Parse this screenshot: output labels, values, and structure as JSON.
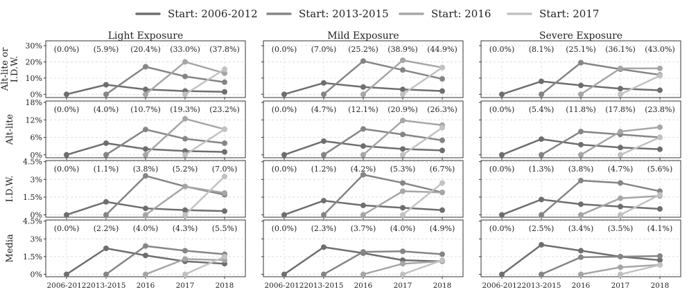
{
  "chart_data": {
    "type": "line",
    "legend": {
      "placement": "top-center",
      "entries": [
        {
          "label": "Start: 2006-2012",
          "color": "#6e6e6e"
        },
        {
          "label": "Start: 2013-2015",
          "color": "#858585"
        },
        {
          "label": "Start: 2016",
          "color": "#a6a6a6"
        },
        {
          "label": "Start: 2017",
          "color": "#c2c2c2"
        }
      ]
    },
    "columns": [
      "Light Exposure",
      "Mild Exposure",
      "Severe Exposure"
    ],
    "x_categories": [
      "2006-2012",
      "2013-2015",
      "2016",
      "2017",
      "2018"
    ],
    "grid": true,
    "rows": [
      {
        "ylabel": [
          "Alt-lite or",
          "I.D.W."
        ],
        "ylim": [
          -0.02,
          0.33
        ],
        "yticks": [
          {
            "v": 0,
            "label": "0%"
          },
          {
            "v": 0.1,
            "label": "10%"
          },
          {
            "v": 0.2,
            "label": "20%"
          },
          {
            "v": 0.3,
            "label": "30%"
          }
        ],
        "panels": [
          {
            "annotations": [
              "(0.0%)",
              "(5.9%)",
              "(20.4%)",
              "(33.0%)",
              "(37.8%)"
            ],
            "series": [
              {
                "start": 0,
                "values": [
                  0,
                  0.059,
                  0.03,
                  0.02,
                  0.015
                ]
              },
              {
                "start": 1,
                "values": [
                  0,
                  0.17,
                  0.11,
                  0.075
                ]
              },
              {
                "start": 2,
                "values": [
                  0,
                  0.2,
                  0.13
                ]
              },
              {
                "start": 3,
                "values": [
                  0,
                  0.155
                ]
              }
            ]
          },
          {
            "annotations": [
              "(0.0%)",
              "(7.0%)",
              "(25.2%)",
              "(38.9%)",
              "(44.9%)"
            ],
            "series": [
              {
                "start": 0,
                "values": [
                  0,
                  0.07,
                  0.045,
                  0.03,
                  0.02
                ]
              },
              {
                "start": 1,
                "values": [
                  0,
                  0.205,
                  0.15,
                  0.095
                ]
              },
              {
                "start": 2,
                "values": [
                  0,
                  0.21,
                  0.165
                ]
              },
              {
                "start": 3,
                "values": [
                  0,
                  0.165
                ]
              }
            ]
          },
          {
            "annotations": [
              "(0.0%)",
              "(8.1%)",
              "(25.1%)",
              "(36.1%)",
              "(43.0%)"
            ],
            "series": [
              {
                "start": 0,
                "values": [
                  0,
                  0.08,
                  0.055,
                  0.035,
                  0.025
                ]
              },
              {
                "start": 1,
                "values": [
                  0,
                  0.195,
                  0.155,
                  0.12
                ]
              },
              {
                "start": 2,
                "values": [
                  0,
                  0.16,
                  0.16
                ]
              },
              {
                "start": 3,
                "values": [
                  0,
                  0.115
                ]
              }
            ]
          }
        ]
      },
      {
        "ylabel": [
          "Alt-lite"
        ],
        "ylim": [
          -0.01,
          0.185
        ],
        "yticks": [
          {
            "v": 0,
            "label": "0%"
          },
          {
            "v": 0.06,
            "label": "6%"
          },
          {
            "v": 0.12,
            "label": "12%"
          },
          {
            "v": 0.18,
            "label": "18%"
          }
        ],
        "panels": [
          {
            "annotations": [
              "(0.0%)",
              "(4.0%)",
              "(10.7%)",
              "(19.3%)",
              "(23.2%)"
            ],
            "series": [
              {
                "start": 0,
                "values": [
                  0,
                  0.04,
                  0.02,
                  0.013,
                  0.01
                ]
              },
              {
                "start": 1,
                "values": [
                  0,
                  0.087,
                  0.055,
                  0.04
                ]
              },
              {
                "start": 2,
                "values": [
                  0,
                  0.124,
                  0.088
                ]
              },
              {
                "start": 3,
                "values": [
                  0,
                  0.088
                ]
              }
            ]
          },
          {
            "annotations": [
              "(0.0%)",
              "(4.7%)",
              "(12.1%)",
              "(20.9%)",
              "(26.3%)"
            ],
            "series": [
              {
                "start": 0,
                "values": [
                  0,
                  0.047,
                  0.03,
                  0.02,
                  0.015
                ]
              },
              {
                "start": 1,
                "values": [
                  0,
                  0.089,
                  0.07,
                  0.05
                ]
              },
              {
                "start": 2,
                "values": [
                  0,
                  0.118,
                  0.102
                ]
              },
              {
                "start": 3,
                "values": [
                  0,
                  0.093
                ]
              }
            ]
          },
          {
            "annotations": [
              "(0.0%)",
              "(5.4%)",
              "(11.8%)",
              "(17.8%)",
              "(23.8%)"
            ],
            "series": [
              {
                "start": 0,
                "values": [
                  0,
                  0.054,
                  0.035,
                  0.025,
                  0.019
                ]
              },
              {
                "start": 1,
                "values": [
                  0,
                  0.08,
                  0.07,
                  0.06
                ]
              },
              {
                "start": 2,
                "values": [
                  0,
                  0.08,
                  0.095
                ]
              },
              {
                "start": 3,
                "values": [
                  0,
                  0.06
                ]
              }
            ]
          }
        ]
      },
      {
        "ylabel": [
          "I.D.W."
        ],
        "ylim": [
          -0.002,
          0.046
        ],
        "yticks": [
          {
            "v": 0,
            "label": "0%"
          },
          {
            "v": 0.015,
            "label": "1.5%"
          },
          {
            "v": 0.03,
            "label": "3%"
          },
          {
            "v": 0.045,
            "label": "4.5%"
          }
        ],
        "panels": [
          {
            "annotations": [
              "(0.0%)",
              "(1.1%)",
              "(3.8%)",
              "(5.2%)",
              "(7.0%)"
            ],
            "series": [
              {
                "start": 0,
                "values": [
                  0,
                  0.011,
                  0.0055,
                  0.004,
                  0.0032
                ]
              },
              {
                "start": 1,
                "values": [
                  0,
                  0.033,
                  0.024,
                  0.017
                ]
              },
              {
                "start": 2,
                "values": [
                  0,
                  0.024,
                  0.0185
                ]
              },
              {
                "start": 3,
                "values": [
                  0,
                  0.0325
                ]
              }
            ]
          },
          {
            "annotations": [
              "(0.0%)",
              "(1.2%)",
              "(4.2%)",
              "(5.3%)",
              "(6.7%)"
            ],
            "series": [
              {
                "start": 0,
                "values": [
                  0,
                  0.012,
                  0.008,
                  0.006,
                  0.004
                ]
              },
              {
                "start": 1,
                "values": [
                  0,
                  0.034,
                  0.027,
                  0.019
                ]
              },
              {
                "start": 2,
                "values": [
                  0,
                  0.02,
                  0.019
                ]
              },
              {
                "start": 3,
                "values": [
                  0,
                  0.027
                ]
              }
            ]
          },
          {
            "annotations": [
              "(0.0%)",
              "(1.3%)",
              "(3.8%)",
              "(4.7%)",
              "(5.6%)"
            ],
            "series": [
              {
                "start": 0,
                "values": [
                  0,
                  0.013,
                  0.009,
                  0.007,
                  0.005
                ]
              },
              {
                "start": 1,
                "values": [
                  0,
                  0.029,
                  0.027,
                  0.02
                ]
              },
              {
                "start": 2,
                "values": [
                  0,
                  0.014,
                  0.016
                ]
              },
              {
                "start": 3,
                "values": [
                  0,
                  0.017
                ]
              }
            ]
          }
        ]
      },
      {
        "ylabel": [
          "Media"
        ],
        "ylim": [
          -0.002,
          0.046
        ],
        "yticks": [
          {
            "v": 0,
            "label": "0%"
          },
          {
            "v": 0.015,
            "label": "1.5%"
          },
          {
            "v": 0.03,
            "label": "3%"
          },
          {
            "v": 0.045,
            "label": "4.5%"
          }
        ],
        "panels": [
          {
            "annotations": [
              "(0.0%)",
              "(2.2%)",
              "(4.0%)",
              "(4.3%)",
              "(5.5%)"
            ],
            "series": [
              {
                "start": 0,
                "values": [
                  0,
                  0.022,
                  0.016,
                  0.011,
                  0.009
                ]
              },
              {
                "start": 1,
                "values": [
                  0,
                  0.024,
                  0.02,
                  0.017
                ]
              },
              {
                "start": 2,
                "values": [
                  0,
                  0.013,
                  0.012
                ]
              },
              {
                "start": 3,
                "values": [
                  0,
                  0.015
                ]
              }
            ]
          },
          {
            "annotations": [
              "(0.0%)",
              "(2.3%)",
              "(3.7%)",
              "(4.0%)",
              "(4.9%)"
            ],
            "series": [
              {
                "start": 0,
                "values": [
                  0,
                  0.023,
                  0.018,
                  0.012,
                  0.011
                ]
              },
              {
                "start": 1,
                "values": [
                  0,
                  0.019,
                  0.0195,
                  0.017
                ]
              },
              {
                "start": 2,
                "values": [
                  0,
                  0.009,
                  0.011
                ]
              },
              {
                "start": 3,
                "values": [
                  0,
                  0.012
                ]
              }
            ]
          },
          {
            "annotations": [
              "(0.0%)",
              "(2.5%)",
              "(3.4%)",
              "(3.5%)",
              "(4.1%)"
            ],
            "series": [
              {
                "start": 0,
                "values": [
                  0,
                  0.025,
                  0.02,
                  0.015,
                  0.012
                ]
              },
              {
                "start": 1,
                "values": [
                  0,
                  0.0145,
                  0.015,
                  0.0155
                ]
              },
              {
                "start": 2,
                "values": [
                  0,
                  0.006,
                  0.008
                ]
              },
              {
                "start": 3,
                "values": [
                  0,
                  0.008
                ]
              }
            ]
          }
        ]
      }
    ]
  }
}
